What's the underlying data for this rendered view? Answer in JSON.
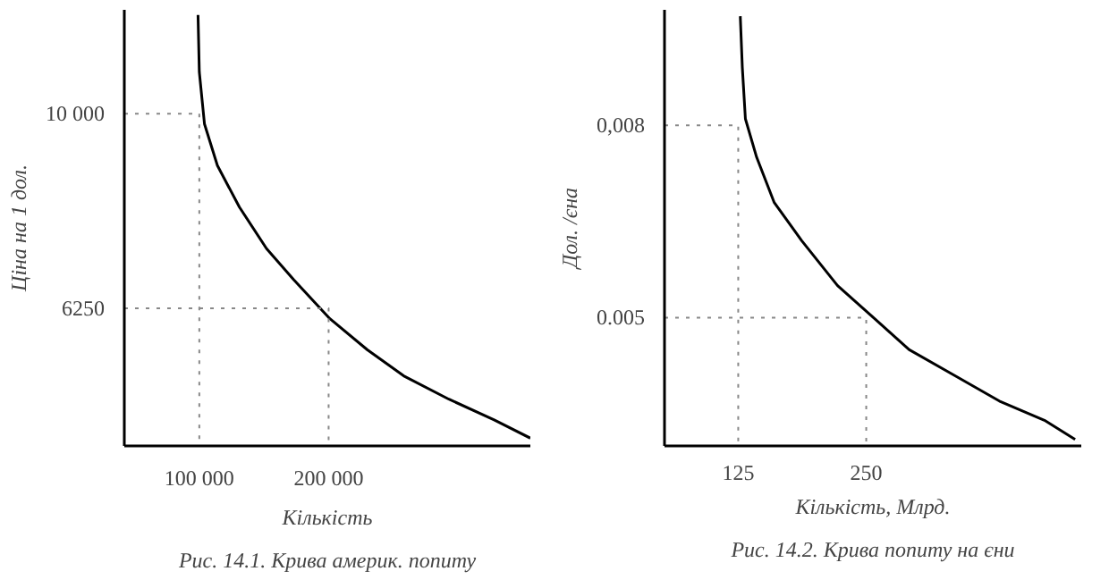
{
  "chart_data": [
    {
      "type": "line",
      "ylabel": "Ціна на 1 дол.",
      "xlabel": "Кількість",
      "annotations": [
        "Рис. 14.1. Крива америк. попиту"
      ],
      "xlim": [
        42000,
        356000
      ],
      "ylim": [
        3600,
        12000
      ],
      "xticks": [
        {
          "value": 100000,
          "label": "100 000"
        },
        {
          "value": 200000,
          "label": "200 000"
        }
      ],
      "yticks": [
        {
          "value": 10000,
          "label": "10 000"
        },
        6250
      ],
      "series": [
        {
          "color": "#000000",
          "x": [
            99000,
            100000,
            104000,
            114000,
            131000,
            152000,
            173000,
            201000,
            230000,
            258000,
            293000,
            328000,
            356000
          ],
          "values": [
            11900,
            10800,
            9800,
            9000,
            8200,
            7400,
            6800,
            6050,
            5450,
            4950,
            4500,
            4100,
            3750
          ]
        },
        {
          "color": "#888888",
          "line_style": "dotted",
          "x": [
            42000,
            100000,
            100000
          ],
          "values": [
            10000,
            10000,
            3600
          ]
        },
        {
          "color": "#888888",
          "line_style": "dotted",
          "x": [
            42000,
            200000,
            200000
          ],
          "values": [
            6250,
            6250,
            3600
          ]
        }
      ]
    },
    {
      "type": "line",
      "ylabel": "Дол. /єна",
      "xlabel": "Кількість, Млрд.",
      "annotations": [
        "Рис. 14.2. Крива попиту на єни"
      ],
      "xlim": [
        53,
        460
      ],
      "ylim": [
        0.003,
        0.0098
      ],
      "xticks": [
        125,
        250
      ],
      "yticks": [
        {
          "value": 0.008,
          "label": "0,008"
        },
        {
          "value": 0.005,
          "label": "0.005"
        }
      ],
      "series": [
        {
          "color": "#000000",
          "x": [
            127,
            129,
            132,
            143,
            160,
            187,
            222,
            257,
            292,
            336,
            380,
            424,
            454
          ],
          "values": [
            0.0097,
            0.0089,
            0.0081,
            0.0075,
            0.0068,
            0.0062,
            0.0055,
            0.005,
            0.0045,
            0.0041,
            0.0037,
            0.0034,
            0.0031
          ]
        },
        {
          "color": "#888888",
          "line_style": "dotted",
          "x": [
            53,
            125,
            125
          ],
          "values": [
            0.008,
            0.008,
            0.003
          ]
        },
        {
          "color": "#888888",
          "line_style": "dotted",
          "x": [
            53,
            250,
            250
          ],
          "values": [
            0.005,
            0.005,
            0.003
          ]
        }
      ]
    }
  ]
}
